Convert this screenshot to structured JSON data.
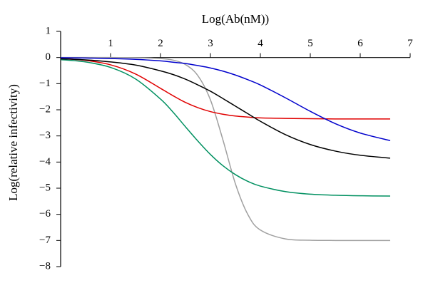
{
  "chart_data": {
    "type": "line",
    "x_label": "Log(Ab(nM))",
    "y_label": "Log(relative infectivity)",
    "x": [
      0,
      0.5,
      1,
      1.5,
      2,
      2.25,
      2.5,
      2.75,
      3,
      3.25,
      3.5,
      3.75,
      4,
      4.5,
      5,
      5.5,
      6,
      6.6
    ],
    "series": [
      {
        "color": "#a0a0a0",
        "values": [
          0,
          0,
          0,
          -0.01,
          -0.04,
          -0.1,
          -0.27,
          -0.7,
          -1.62,
          -3.15,
          -4.83,
          -6.01,
          -6.6,
          -6.94,
          -6.99,
          -7.0,
          -7.0,
          -7.0
        ]
      },
      {
        "color": "#009060",
        "values": [
          -0.08,
          -0.17,
          -0.38,
          -0.82,
          -1.59,
          -2.09,
          -2.65,
          -3.2,
          -3.71,
          -4.14,
          -4.48,
          -4.74,
          -4.92,
          -5.13,
          -5.23,
          -5.27,
          -5.29,
          -5.3
        ]
      },
      {
        "color": "#e00000",
        "values": [
          -0.04,
          -0.11,
          -0.28,
          -0.63,
          -1.18,
          -1.46,
          -1.72,
          -1.92,
          -2.07,
          -2.17,
          -2.24,
          -2.28,
          -2.31,
          -2.33,
          -2.34,
          -2.35,
          -2.35,
          -2.35
        ]
      },
      {
        "color": "#000000",
        "values": [
          -0.05,
          -0.09,
          -0.17,
          -0.29,
          -0.51,
          -0.65,
          -0.83,
          -1.05,
          -1.29,
          -1.57,
          -1.86,
          -2.15,
          -2.44,
          -2.95,
          -3.33,
          -3.58,
          -3.74,
          -3.85
        ]
      },
      {
        "color": "#0000cc",
        "values": [
          -0.01,
          -0.02,
          -0.04,
          -0.07,
          -0.13,
          -0.18,
          -0.23,
          -0.31,
          -0.4,
          -0.52,
          -0.67,
          -0.85,
          -1.05,
          -1.54,
          -2.06,
          -2.53,
          -2.89,
          -3.18
        ]
      }
    ],
    "xlim": [
      0,
      7
    ],
    "xticks": [
      1,
      2,
      3,
      4,
      5,
      6,
      7
    ],
    "ylim": [
      -8,
      1
    ],
    "yticks": [
      1,
      0,
      {
        "value": -1,
        "label": "−1"
      },
      {
        "value": -2,
        "label": "−2"
      },
      {
        "value": -3,
        "label": "−3"
      },
      {
        "value": -4,
        "label": "−4"
      },
      {
        "value": -5,
        "label": "−5"
      },
      {
        "value": -6,
        "label": "−6"
      },
      {
        "value": -7,
        "label": "−7"
      },
      {
        "value": -8,
        "label": "−8"
      }
    ]
  }
}
